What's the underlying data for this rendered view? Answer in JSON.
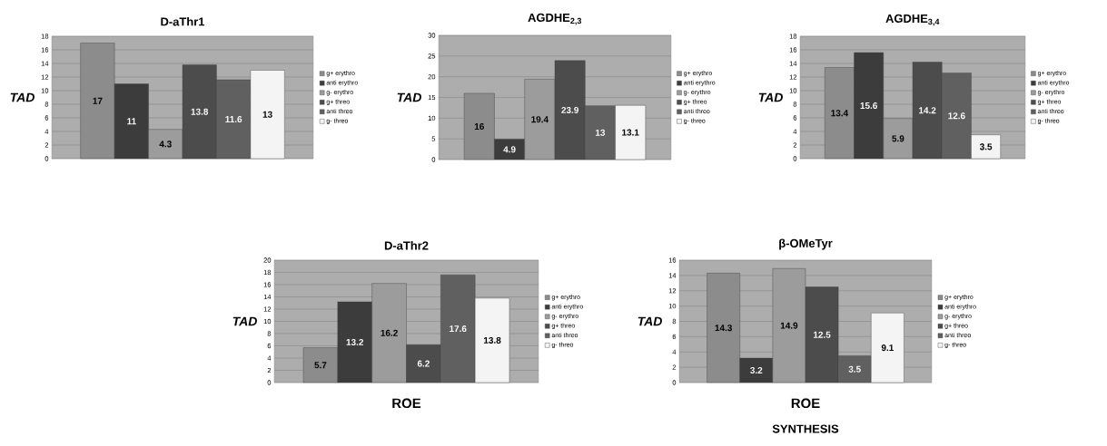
{
  "chart_data": [
    {
      "type": "bar",
      "title": "D-aThr1",
      "ylabel": "TAD",
      "categories": [
        null
      ],
      "ylim": [
        0,
        18
      ],
      "yticks": [
        0,
        2,
        4,
        6,
        8,
        10,
        12,
        14,
        16,
        18
      ],
      "grid": "y",
      "legend": "right",
      "data_labels": true,
      "series": [
        {
          "name": "g+ erythro",
          "color": "#8c8c8c",
          "values": [
            17
          ]
        },
        {
          "name": "anti erythro",
          "color": "#3c3c3c",
          "values": [
            11
          ]
        },
        {
          "name": "g- erythro",
          "color": "#9c9c9c",
          "values": [
            4.3
          ]
        },
        {
          "name": "g+ threo",
          "color": "#4c4c4c",
          "values": [
            13.8
          ]
        },
        {
          "name": "anti threo",
          "color": "#606060",
          "values": [
            11.6
          ]
        },
        {
          "name": "g- threo",
          "color": "#f4f4f4",
          "values": [
            13
          ]
        }
      ]
    },
    {
      "type": "bar",
      "title": "AGDHE$_{2,3}$",
      "ylabel": "TAD",
      "categories": [
        null
      ],
      "ylim": [
        0,
        30
      ],
      "yticks": [
        0,
        5,
        10,
        15,
        20,
        25,
        30
      ],
      "grid": "y",
      "legend": "right",
      "data_labels": true,
      "series": [
        {
          "name": "g+ erythro",
          "color": "#8c8c8c",
          "values": [
            16
          ]
        },
        {
          "name": "anti erythro",
          "color": "#3c3c3c",
          "values": [
            4.9
          ]
        },
        {
          "name": "g- erythro",
          "color": "#9c9c9c",
          "values": [
            19.4
          ]
        },
        {
          "name": "g+ threo",
          "color": "#4c4c4c",
          "values": [
            23.9
          ]
        },
        {
          "name": "anti threo",
          "color": "#606060",
          "values": [
            13
          ]
        },
        {
          "name": "g- threo",
          "color": "#f4f4f4",
          "values": [
            13.1
          ]
        }
      ]
    },
    {
      "type": "bar",
      "title": "AGDHE$_{3,4}$",
      "ylabel": "TAD",
      "categories": [
        null
      ],
      "ylim": [
        0,
        18
      ],
      "yticks": [
        0,
        2,
        4,
        6,
        8,
        10,
        12,
        14,
        16,
        18
      ],
      "grid": "y",
      "legend": "right",
      "data_labels": true,
      "series": [
        {
          "name": "g+ erythro",
          "color": "#8c8c8c",
          "values": [
            13.4
          ]
        },
        {
          "name": "anti erythro",
          "color": "#3c3c3c",
          "values": [
            15.6
          ]
        },
        {
          "name": "g- erythro",
          "color": "#9c9c9c",
          "values": [
            5.9
          ]
        },
        {
          "name": "g+ threo",
          "color": "#4c4c4c",
          "values": [
            14.2
          ]
        },
        {
          "name": "anti threo",
          "color": "#606060",
          "values": [
            12.6
          ]
        },
        {
          "name": "g- threo",
          "color": "#f4f4f4",
          "values": [
            3.5
          ]
        }
      ]
    },
    {
      "type": "bar",
      "title": "D-aThr2",
      "xlabel": "ROE",
      "ylabel": "TAD",
      "categories": [
        null
      ],
      "ylim": [
        0,
        20
      ],
      "yticks": [
        0,
        2,
        4,
        6,
        8,
        10,
        12,
        14,
        16,
        18,
        20
      ],
      "grid": "y",
      "legend": "right",
      "data_labels": true,
      "series": [
        {
          "name": "g+ erythro",
          "color": "#8c8c8c",
          "values": [
            5.7
          ]
        },
        {
          "name": "anti erythro",
          "color": "#3c3c3c",
          "values": [
            13.2
          ]
        },
        {
          "name": "g- erythro",
          "color": "#9c9c9c",
          "values": [
            16.2
          ]
        },
        {
          "name": "g+ threo",
          "color": "#4c4c4c",
          "values": [
            6.2
          ]
        },
        {
          "name": "anti threo",
          "color": "#606060",
          "values": [
            17.6
          ]
        },
        {
          "name": "g- threo",
          "color": "#f4f4f4",
          "values": [
            13.8
          ]
        }
      ]
    },
    {
      "type": "bar",
      "title": "β-OMeTyr",
      "xlabel": "ROE",
      "ylabel": "TAD",
      "annotations": [
        "SYNTHESIS"
      ],
      "categories": [
        null
      ],
      "ylim": [
        0,
        16
      ],
      "yticks": [
        0,
        2,
        4,
        6,
        8,
        10,
        12,
        14,
        16
      ],
      "grid": "y",
      "legend": "right",
      "data_labels": true,
      "series": [
        {
          "name": "g+ erythro",
          "color": "#8c8c8c",
          "values": [
            14.3
          ]
        },
        {
          "name": "anti erythro",
          "color": "#3c3c3c",
          "values": [
            3.2
          ]
        },
        {
          "name": "g- erythro",
          "color": "#9c9c9c",
          "values": [
            14.9
          ]
        },
        {
          "name": "g+ threo",
          "color": "#4c4c4c",
          "values": [
            12.5
          ]
        },
        {
          "name": "anti threo",
          "color": "#606060",
          "values": [
            3.5
          ]
        },
        {
          "name": "g- threo",
          "color": "#f4f4f4",
          "values": [
            9.1
          ]
        }
      ]
    }
  ]
}
